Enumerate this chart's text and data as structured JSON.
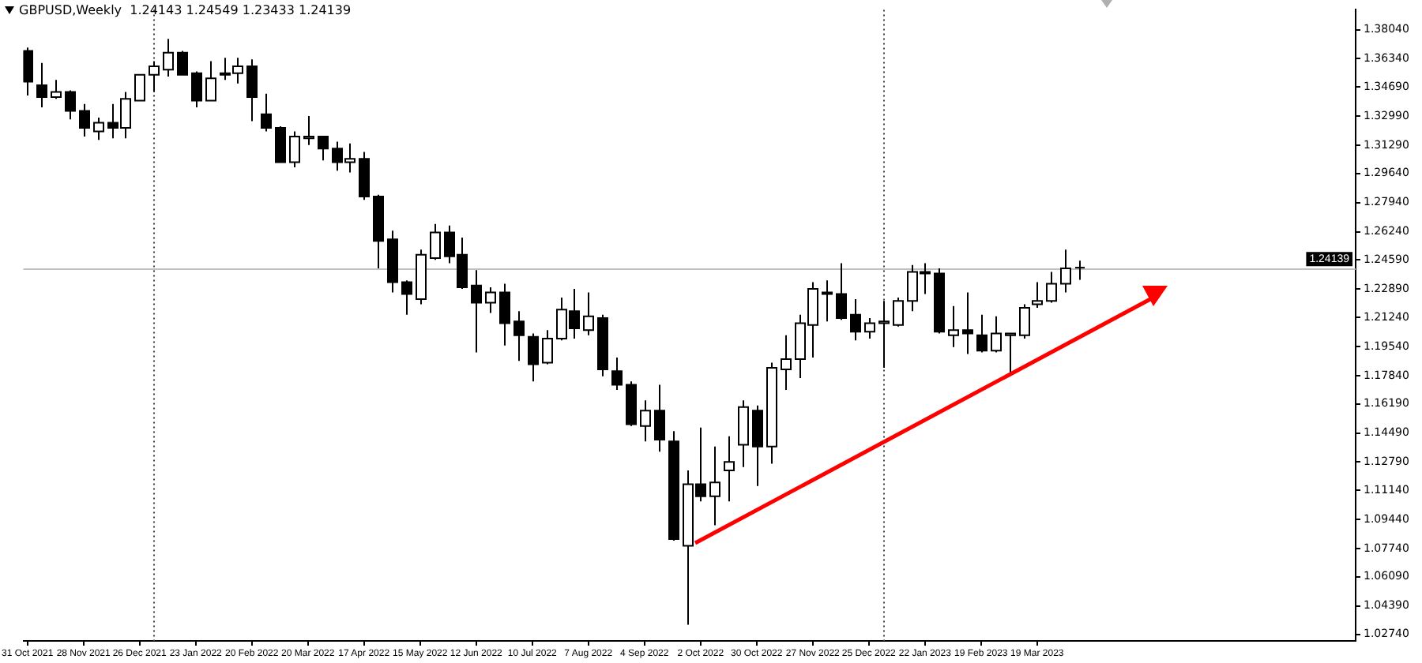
{
  "chart_data": {
    "type": "candlestick",
    "title": "GBPUSD,Weekly  1.24143 1.24549 1.23433 1.24139",
    "x": [
      "2021-10-31",
      "2021-11-07",
      "2021-11-14",
      "2021-11-21",
      "2021-11-28",
      "2021-12-05",
      "2021-12-12",
      "2021-12-19",
      "2021-12-26",
      "2022-01-02",
      "2022-01-09",
      "2022-01-16",
      "2022-01-23",
      "2022-01-30",
      "2022-02-06",
      "2022-02-13",
      "2022-02-20",
      "2022-02-27",
      "2022-03-06",
      "2022-03-13",
      "2022-03-20",
      "2022-03-27",
      "2022-04-03",
      "2022-04-10",
      "2022-04-17",
      "2022-04-24",
      "2022-05-01",
      "2022-05-08",
      "2022-05-15",
      "2022-05-22",
      "2022-05-29",
      "2022-06-05",
      "2022-06-12",
      "2022-06-19",
      "2022-06-26",
      "2022-07-03",
      "2022-07-10",
      "2022-07-17",
      "2022-07-24",
      "2022-07-31",
      "2022-08-07",
      "2022-08-14",
      "2022-08-21",
      "2022-08-28",
      "2022-09-04",
      "2022-09-11",
      "2022-09-18",
      "2022-09-25",
      "2022-10-02",
      "2022-10-09",
      "2022-10-16",
      "2022-10-23",
      "2022-10-30",
      "2022-11-06",
      "2022-11-13",
      "2022-11-20",
      "2022-11-27",
      "2022-12-04",
      "2022-12-11",
      "2022-12-18",
      "2022-12-25",
      "2023-01-01",
      "2023-01-08",
      "2023-01-15",
      "2023-01-22",
      "2023-01-29",
      "2023-02-05",
      "2023-02-12",
      "2023-02-19",
      "2023-02-26",
      "2023-03-05",
      "2023-03-12",
      "2023-03-19",
      "2023-03-26",
      "2023-04-02",
      "2023-04-09"
    ],
    "ohlc": [
      [
        1.368,
        1.37,
        1.342,
        1.35
      ],
      [
        1.348,
        1.361,
        1.335,
        1.341
      ],
      [
        1.341,
        1.351,
        1.34,
        1.344
      ],
      [
        1.344,
        1.345,
        1.328,
        1.333
      ],
      [
        1.333,
        1.337,
        1.318,
        1.323
      ],
      [
        1.321,
        1.329,
        1.316,
        1.326
      ],
      [
        1.326,
        1.337,
        1.317,
        1.323
      ],
      [
        1.323,
        1.344,
        1.317,
        1.34
      ],
      [
        1.339,
        1.354,
        1.339,
        1.354
      ],
      [
        1.354,
        1.362,
        1.344,
        1.359
      ],
      [
        1.357,
        1.375,
        1.353,
        1.367
      ],
      [
        1.367,
        1.368,
        1.354,
        1.354
      ],
      [
        1.355,
        1.356,
        1.335,
        1.339
      ],
      [
        1.339,
        1.362,
        1.339,
        1.352
      ],
      [
        1.354,
        1.364,
        1.351,
        1.355
      ],
      [
        1.355,
        1.364,
        1.349,
        1.359
      ],
      [
        1.359,
        1.363,
        1.327,
        1.341
      ],
      [
        1.331,
        1.343,
        1.321,
        1.323
      ],
      [
        1.323,
        1.324,
        1.303,
        1.303
      ],
      [
        1.303,
        1.321,
        1.3,
        1.318
      ],
      [
        1.317,
        1.33,
        1.313,
        1.318
      ],
      [
        1.318,
        1.318,
        1.304,
        1.311
      ],
      [
        1.311,
        1.315,
        1.298,
        1.303
      ],
      [
        1.303,
        1.314,
        1.297,
        1.305
      ],
      [
        1.305,
        1.309,
        1.281,
        1.283
      ],
      [
        1.283,
        1.284,
        1.241,
        1.257
      ],
      [
        1.258,
        1.263,
        1.227,
        1.233
      ],
      [
        1.233,
        1.234,
        1.214,
        1.226
      ],
      [
        1.223,
        1.252,
        1.22,
        1.249
      ],
      [
        1.247,
        1.267,
        1.246,
        1.262
      ],
      [
        1.262,
        1.266,
        1.244,
        1.248
      ],
      [
        1.249,
        1.259,
        1.229,
        1.23
      ],
      [
        1.231,
        1.24,
        1.192,
        1.221
      ],
      [
        1.221,
        1.23,
        1.215,
        1.227
      ],
      [
        1.227,
        1.232,
        1.196,
        1.209
      ],
      [
        1.21,
        1.216,
        1.187,
        1.202
      ],
      [
        1.201,
        1.203,
        1.175,
        1.185
      ],
      [
        1.186,
        1.205,
        1.185,
        1.2
      ],
      [
        1.2,
        1.224,
        1.199,
        1.217
      ],
      [
        1.216,
        1.229,
        1.2,
        1.206
      ],
      [
        1.205,
        1.227,
        1.202,
        1.213
      ],
      [
        1.212,
        1.214,
        1.178,
        1.182
      ],
      [
        1.181,
        1.189,
        1.17,
        1.173
      ],
      [
        1.173,
        1.175,
        1.149,
        1.15
      ],
      [
        1.149,
        1.164,
        1.14,
        1.158
      ],
      [
        1.158,
        1.173,
        1.134,
        1.141
      ],
      [
        1.14,
        1.146,
        1.082,
        1.083
      ],
      [
        1.079,
        1.123,
        1.033,
        1.115
      ],
      [
        1.115,
        1.148,
        1.105,
        1.108
      ],
      [
        1.108,
        1.137,
        1.091,
        1.116
      ],
      [
        1.123,
        1.143,
        1.105,
        1.128
      ],
      [
        1.138,
        1.164,
        1.125,
        1.16
      ],
      [
        1.158,
        1.161,
        1.114,
        1.137
      ],
      [
        1.137,
        1.186,
        1.127,
        1.183
      ],
      [
        1.182,
        1.202,
        1.17,
        1.188
      ],
      [
        1.188,
        1.214,
        1.177,
        1.209
      ],
      [
        1.208,
        1.233,
        1.189,
        1.229
      ],
      [
        1.226,
        1.234,
        1.21,
        1.227
      ],
      [
        1.226,
        1.244,
        1.211,
        1.212
      ],
      [
        1.214,
        1.223,
        1.199,
        1.204
      ],
      [
        1.204,
        1.212,
        1.2,
        1.209
      ],
      [
        1.209,
        1.222,
        1.183,
        1.21
      ],
      [
        1.208,
        1.224,
        1.207,
        1.222
      ],
      [
        1.222,
        1.243,
        1.216,
        1.239
      ],
      [
        1.238,
        1.244,
        1.226,
        1.239
      ],
      [
        1.238,
        1.241,
        1.203,
        1.204
      ],
      [
        1.202,
        1.219,
        1.195,
        1.205
      ],
      [
        1.205,
        1.227,
        1.191,
        1.203
      ],
      [
        1.202,
        1.214,
        1.192,
        1.193
      ],
      [
        1.193,
        1.213,
        1.192,
        1.203
      ],
      [
        1.202,
        1.203,
        1.179,
        1.203
      ],
      [
        1.202,
        1.22,
        1.2,
        1.218
      ],
      [
        1.22,
        1.233,
        1.218,
        1.222
      ],
      [
        1.222,
        1.239,
        1.221,
        1.232
      ],
      [
        1.232,
        1.252,
        1.227,
        1.241
      ],
      [
        1.24143,
        1.24549,
        1.23433,
        1.24139
      ]
    ],
    "xlim": [
      "2021-10-29",
      "2023-08-25"
    ],
    "xticks": [
      {
        "value": "2021-10-31",
        "label": "31 Oct 2021"
      },
      {
        "value": "2021-11-28",
        "label": "28 Nov 2021"
      },
      {
        "value": "2021-12-26",
        "label": "26 Dec 2021"
      },
      {
        "value": "2022-01-23",
        "label": "23 Jan 2022"
      },
      {
        "value": "2022-02-20",
        "label": "20 Feb 2022"
      },
      {
        "value": "2022-03-20",
        "label": "20 Mar 2022"
      },
      {
        "value": "2022-04-17",
        "label": "17 Apr 2022"
      },
      {
        "value": "2022-05-15",
        "label": "15 May 2022"
      },
      {
        "value": "2022-06-12",
        "label": "12 Jun 2022"
      },
      {
        "value": "2022-07-10",
        "label": "10 Jul 2022"
      },
      {
        "value": "2022-08-07",
        "label": "7 Aug 2022"
      },
      {
        "value": "2022-09-04",
        "label": "4 Sep 2022"
      },
      {
        "value": "2022-10-02",
        "label": "2 Oct 2022"
      },
      {
        "value": "2022-10-30",
        "label": "30 Oct 2022"
      },
      {
        "value": "2022-11-27",
        "label": "27 Nov 2022"
      },
      {
        "value": "2022-12-25",
        "label": "25 Dec 2022"
      },
      {
        "value": "2023-01-22",
        "label": "22 Jan 2023"
      },
      {
        "value": "2023-02-19",
        "label": "19 Feb 2023"
      },
      {
        "value": "2023-03-19",
        "label": "19 Mar 2023"
      }
    ],
    "ylim": [
      1.0235,
      1.392
    ],
    "yticks": [
      {
        "value": 1.3804,
        "label": "1.38040"
      },
      {
        "value": 1.3634,
        "label": "1.36340"
      },
      {
        "value": 1.3469,
        "label": "1.34690"
      },
      {
        "value": 1.3299,
        "label": "1.32990"
      },
      {
        "value": 1.3129,
        "label": "1.31290"
      },
      {
        "value": 1.2964,
        "label": "1.29640"
      },
      {
        "value": 1.2794,
        "label": "1.27940"
      },
      {
        "value": 1.2624,
        "label": "1.26240"
      },
      {
        "value": 1.2459,
        "label": "1.24590"
      },
      {
        "value": 1.2289,
        "label": "1.22890"
      },
      {
        "value": 1.2124,
        "label": "1.21240"
      },
      {
        "value": 1.1954,
        "label": "1.19540"
      },
      {
        "value": 1.1784,
        "label": "1.17840"
      },
      {
        "value": 1.1619,
        "label": "1.16190"
      },
      {
        "value": 1.1449,
        "label": "1.14490"
      },
      {
        "value": 1.1279,
        "label": "1.12790"
      },
      {
        "value": 1.1114,
        "label": "1.11140"
      },
      {
        "value": 1.0944,
        "label": "1.09440"
      },
      {
        "value": 1.0774,
        "label": "1.07740"
      },
      {
        "value": 1.0609,
        "label": "1.06090"
      },
      {
        "value": 1.0439,
        "label": "1.04390"
      },
      {
        "value": 1.0274,
        "label": "1.02740"
      }
    ],
    "ref_lines": [
      {
        "axis": "y",
        "value": 1.24139,
        "label": "1.24139",
        "color": "#c0c0c0",
        "line_style": "solid"
      },
      {
        "axis": "x",
        "value": "2022-01-02",
        "color": "#404040",
        "line_style": "dotted"
      },
      {
        "axis": "x",
        "value": "2023-01-01",
        "color": "#404040",
        "line_style": "dotted"
      }
    ]
  }
}
